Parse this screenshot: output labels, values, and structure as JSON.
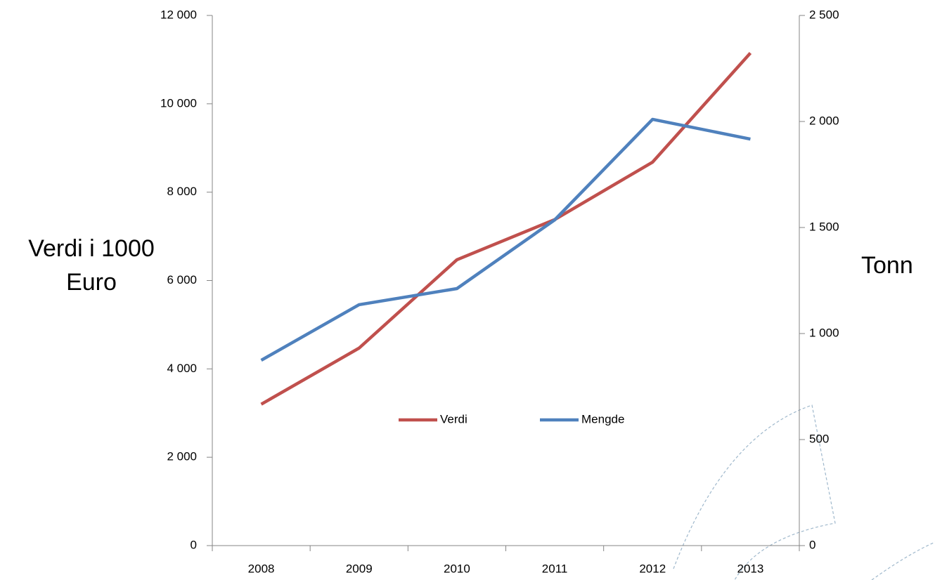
{
  "chart_data": {
    "type": "line",
    "categories": [
      "2008",
      "2009",
      "2010",
      "2011",
      "2012",
      "2013"
    ],
    "series": [
      {
        "name": "Verdi",
        "color": "#c0504d",
        "values": [
          3200,
          4470,
          6470,
          7380,
          8680,
          11150
        ]
      },
      {
        "name": "Mengde",
        "color": "#4f81bd",
        "axis": "y2",
        "values": [
          874,
          1136,
          1212,
          1536,
          2010,
          1917
        ]
      }
    ],
    "ylabel": "Verdi i 1000 Euro",
    "y2label": "Tonn",
    "ylim": [
      0,
      12000
    ],
    "yticks": [
      0,
      {
        "value": 2000,
        "label": "2 000"
      },
      {
        "value": 4000,
        "label": "4 000"
      },
      {
        "value": 6000,
        "label": "6 000"
      },
      {
        "value": 8000,
        "label": "8 000"
      },
      {
        "value": 10000,
        "label": "10 000"
      },
      {
        "value": 12000,
        "label": "12 000"
      }
    ],
    "y2lim": [
      0,
      2500
    ],
    "y2ticks": [
      0,
      500,
      {
        "value": 1000,
        "label": "1 000"
      },
      {
        "value": 1500,
        "label": "1 500"
      },
      {
        "value": 2000,
        "label": "2 000"
      },
      {
        "value": 2500,
        "label": "2 500"
      }
    ],
    "grid": false,
    "legend": "center"
  }
}
